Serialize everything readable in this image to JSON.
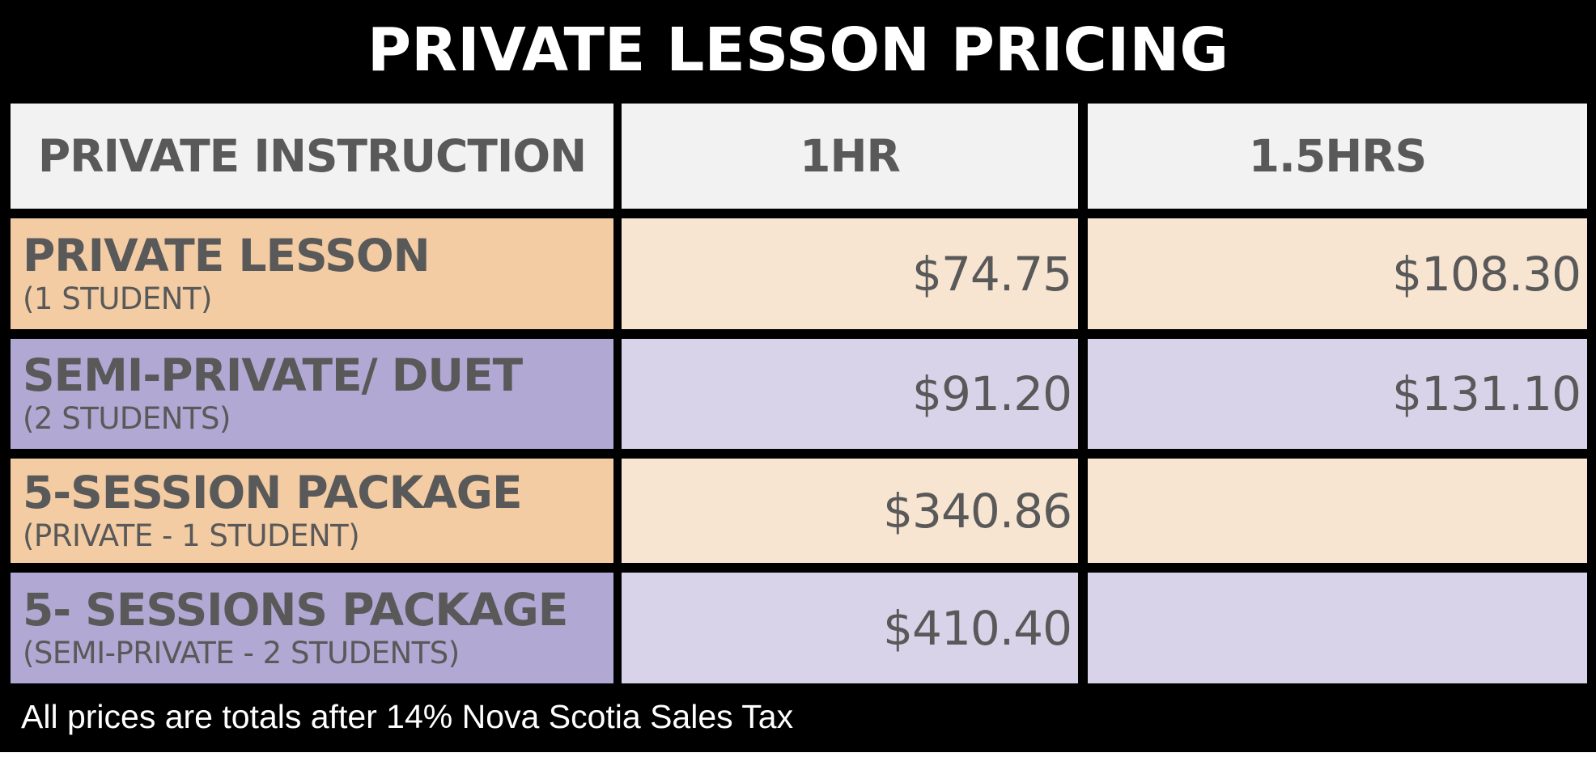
{
  "title": "PRIVATE LESSON PRICING",
  "table": {
    "headers": [
      "PRIVATE INSTRUCTION",
      "1HR",
      "1.5HRS"
    ],
    "rows": [
      {
        "name": "PRIVATE LESSON",
        "detail": "(1 STUDENT)",
        "price_1hr": "$74.75",
        "price_1_5hrs": "$108.30"
      },
      {
        "name": "SEMI-PRIVATE/ DUET",
        "detail": "(2 STUDENTS)",
        "price_1hr": "$91.20",
        "price_1_5hrs": "$131.10"
      },
      {
        "name": "5-SESSION PACKAGE",
        "detail": "(PRIVATE - 1 STUDENT)",
        "price_1hr": "$340.86",
        "price_1_5hrs": ""
      },
      {
        "name": "5- SESSIONS PACKAGE",
        "detail": "(SEMI-PRIVATE - 2 STUDENTS)",
        "price_1hr": "$410.40",
        "price_1_5hrs": ""
      }
    ]
  },
  "footer_note": "All prices are totals after 14% Nova Scotia Sales Tax",
  "colors": {
    "background": "#000000",
    "header_cell": "#f2f2f2",
    "text": "#595959",
    "orange_label": "#f3cca3",
    "orange_value": "#f8e5d1",
    "purple_label": "#b1a8d3",
    "purple_value": "#d8d3e8"
  }
}
